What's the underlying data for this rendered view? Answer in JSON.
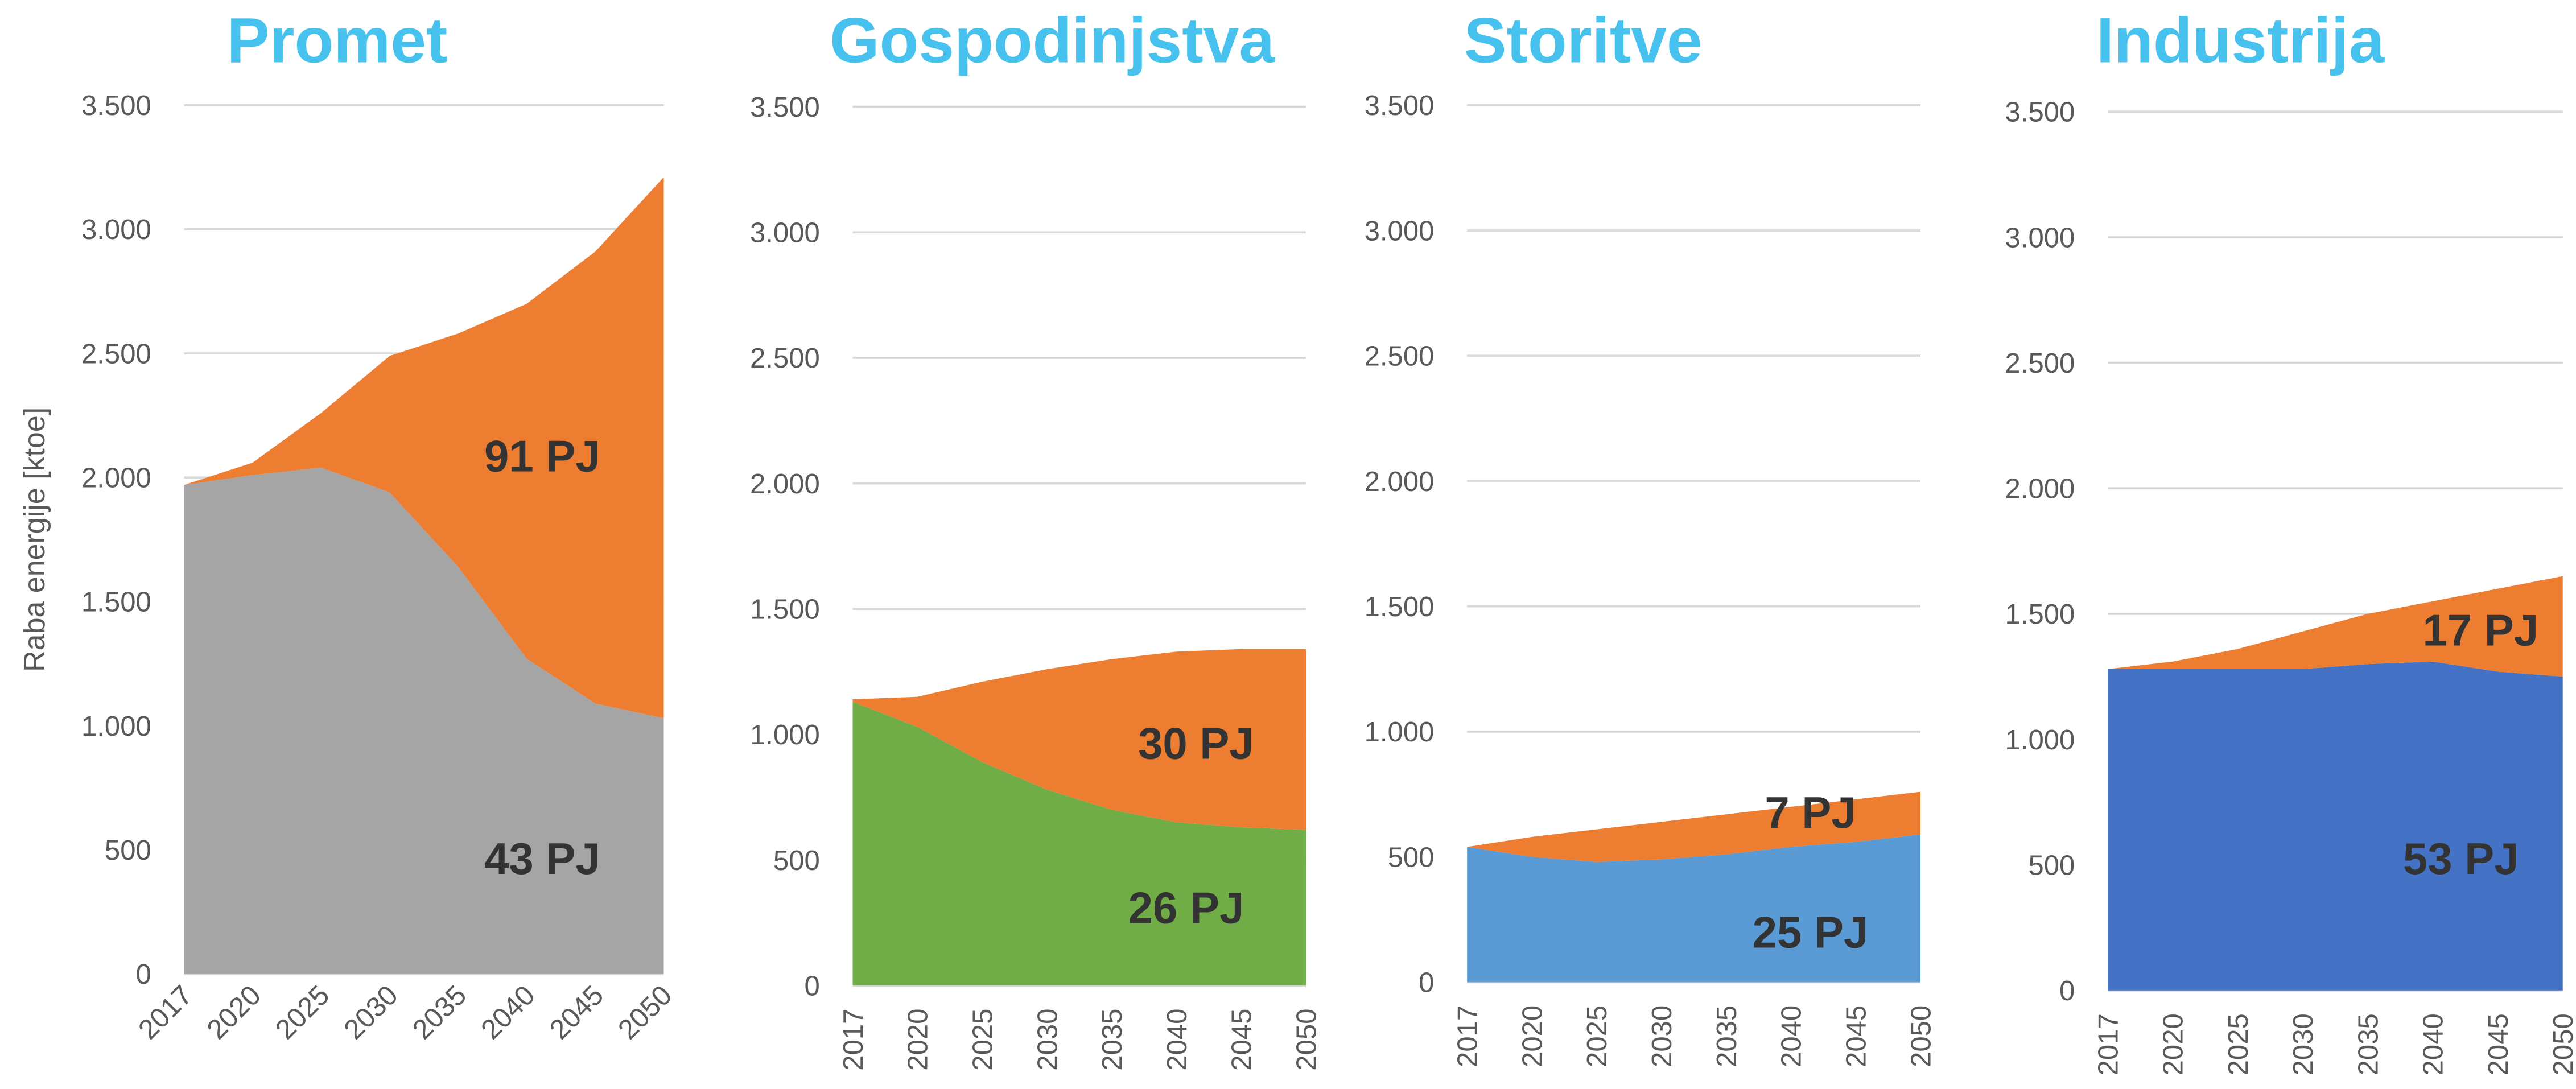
{
  "chart_data": [
    {
      "type": "area",
      "title": "Promet",
      "y_label": "Raba energije [ktoe]",
      "categories": [
        "2017",
        "2020",
        "2025",
        "2030",
        "2035",
        "2040",
        "2045",
        "2050"
      ],
      "series": [
        {
          "color": "#a5a5a5",
          "values": [
            1970,
            2010,
            2040,
            1940,
            1640,
            1270,
            1090,
            1030
          ]
        },
        {
          "color": "#ed7d31",
          "values": [
            0,
            50,
            220,
            550,
            940,
            1430,
            1820,
            2180
          ]
        }
      ],
      "annotations": [
        "91 PJ",
        "43 PJ"
      ],
      "ylim": [
        0,
        3500
      ],
      "yticks": [
        0,
        500,
        {
          "value": 1000,
          "label": "1.000"
        },
        {
          "value": 1500,
          "label": "1.500"
        },
        {
          "value": 2000,
          "label": "2.000"
        },
        {
          "value": 2500,
          "label": "2.500"
        },
        {
          "value": 3000,
          "label": "3.000"
        },
        {
          "value": 3500,
          "label": "3.500"
        }
      ],
      "grid": true
    },
    {
      "type": "area",
      "title": "Gospodinjstva",
      "categories": [
        "2017",
        "2020",
        "2025",
        "2030",
        "2035",
        "2040",
        "2045",
        "2050"
      ],
      "series": [
        {
          "color": "#70ad47",
          "values": [
            1130,
            1030,
            890,
            780,
            700,
            650,
            630,
            620
          ]
        },
        {
          "color": "#ed7d31",
          "values": [
            10,
            120,
            320,
            480,
            600,
            680,
            710,
            720
          ]
        }
      ],
      "annotations": [
        "30 PJ",
        "26 PJ"
      ],
      "ylim": [
        0,
        3500
      ],
      "yticks": [
        0,
        500,
        {
          "value": 1000,
          "label": "1.000"
        },
        {
          "value": 1500,
          "label": "1.500"
        },
        {
          "value": 2000,
          "label": "2.000"
        },
        {
          "value": 2500,
          "label": "2.500"
        },
        {
          "value": 3000,
          "label": "3.000"
        },
        {
          "value": 3500,
          "label": "3.500"
        }
      ],
      "grid": true
    },
    {
      "type": "area",
      "title": "Storitve",
      "categories": [
        "2017",
        "2020",
        "2025",
        "2030",
        "2035",
        "2040",
        "2045",
        "2050"
      ],
      "series": [
        {
          "color": "#5b9bd5",
          "values": [
            540,
            500,
            480,
            490,
            510,
            540,
            560,
            590
          ]
        },
        {
          "color": "#ed7d31",
          "values": [
            0,
            80,
            130,
            150,
            160,
            160,
            170,
            170
          ]
        }
      ],
      "annotations": [
        "7 PJ",
        "25 PJ"
      ],
      "ylim": [
        0,
        3500
      ],
      "yticks": [
        0,
        500,
        {
          "value": 1000,
          "label": "1.000"
        },
        {
          "value": 1500,
          "label": "1.500"
        },
        {
          "value": 2000,
          "label": "2.000"
        },
        {
          "value": 2500,
          "label": "2.500"
        },
        {
          "value": 3000,
          "label": "3.000"
        },
        {
          "value": 3500,
          "label": "3.500"
        }
      ],
      "grid": true
    },
    {
      "type": "area",
      "title": "Industrija",
      "categories": [
        "2017",
        "2020",
        "2025",
        "2030",
        "2035",
        "2040",
        "2045",
        "2050"
      ],
      "series": [
        {
          "color": "#4472c4",
          "values": [
            1280,
            1280,
            1280,
            1280,
            1300,
            1310,
            1270,
            1250
          ]
        },
        {
          "color": "#ed7d31",
          "values": [
            0,
            30,
            80,
            150,
            200,
            240,
            330,
            400
          ]
        }
      ],
      "annotations": [
        "17 PJ",
        "53 PJ"
      ],
      "ylim": [
        0,
        3500
      ],
      "yticks": [
        0,
        500,
        {
          "value": 1000,
          "label": "1.000"
        },
        {
          "value": 1500,
          "label": "1.500"
        },
        {
          "value": 2000,
          "label": "2.000"
        },
        {
          "value": 2500,
          "label": "2.500"
        },
        {
          "value": 3000,
          "label": "3.000"
        },
        {
          "value": 3500,
          "label": "3.500"
        }
      ],
      "grid": true
    }
  ]
}
